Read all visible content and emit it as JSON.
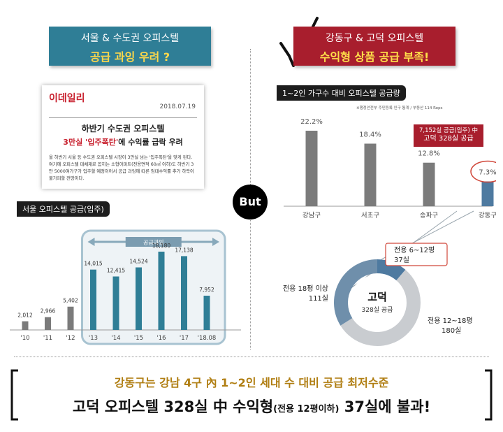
{
  "left_badge": {
    "line1": "서울 & 수도권 오피스텔",
    "line2": "공급 과잉 우려 ?"
  },
  "right_badge": {
    "line1": "강동구 & 고덕 오피스텔",
    "line2": "수익형 상품 공급 부족!"
  },
  "news": {
    "logo": "이데일리",
    "date": "2018.07.19",
    "headline1": "하반기 수도권 오피스텔",
    "headline2_red": "3만실 '입주폭탄'",
    "headline2_rest": "에 수익률 급락 우려",
    "body": "올 하반기 서울 등 수도권 오피스텔 시장이 3만실 넘는 '입주폭탄'을 맞게 된다. 여기에 오피스텔 대체재로 꼽히는 소형아파트(전용면적 60㎡ 이하)도 하반기 3만 5000여가구가 입주할 예정이어서 공급 과잉에 따른 임대수익률 추가 하락이 불가피할 전망이다."
  },
  "but_label": "But",
  "right_chart_source": "※행정안전부 주민등록 인구 통계 / 부동산 114 Reps",
  "callout": {
    "line1": "7,152실 공급(입주) 中",
    "line2": "고덕 328실 공급"
  },
  "bottom": {
    "line1": "강동구는 강남 4구 內 1~2인 세대 수 대비 공급 최저수준",
    "line2_a": "고덕 오피스텔 328실 中 수익형",
    "line2_small": "(전용 12평이하)",
    "line2_b": " 37실에 불과!"
  },
  "colors": {
    "teal": "#2f7e96",
    "red": "#a81e2d",
    "gray_bar": "#7b7b7b",
    "steel": "#4e7aa0",
    "light_gray": "#c9ccd0"
  },
  "chart_data": [
    {
      "type": "bar",
      "title": "서울 오피스텔 공급(입주)",
      "annotation": "공급과잉",
      "categories": [
        "'10",
        "'11",
        "'12",
        "'13",
        "'14",
        "'15",
        "'16",
        "'17",
        "'18.08"
      ],
      "values": [
        2012,
        2966,
        5402,
        14015,
        12415,
        14524,
        18180,
        17138,
        7952
      ],
      "value_labels": [
        "2,012",
        "2,966",
        "5,402",
        "14,015",
        "12,415",
        "14,524",
        "18,180",
        "17,138",
        "7,952"
      ],
      "highlight_from_index": 3
    },
    {
      "type": "bar",
      "title": "1~2인 가구수 대비 오피스텔 공급량",
      "categories": [
        "강남구",
        "서초구",
        "송파구",
        "강동구"
      ],
      "values": [
        22.2,
        18.4,
        12.8,
        7.3
      ],
      "value_labels": [
        "22.2%",
        "18.4%",
        "12.8%",
        "7.3%"
      ],
      "unit": "%"
    },
    {
      "type": "pie",
      "title": "고덕",
      "subtitle": "328실 공급",
      "slices": [
        {
          "label": "전용 6~12평",
          "count_label": "37실",
          "value": 37
        },
        {
          "label": "전용 12~18평",
          "count_label": "180실",
          "value": 180
        },
        {
          "label": "전용 18평 이상",
          "count_label": "111실",
          "value": 111
        }
      ]
    }
  ]
}
